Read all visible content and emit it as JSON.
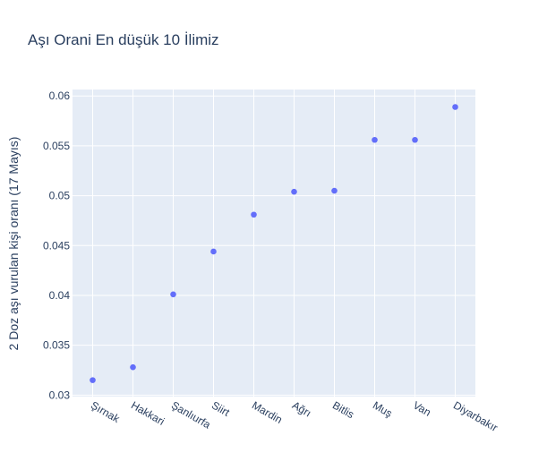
{
  "chart_data": {
    "type": "scatter",
    "title": "Aşı Orani En düşük 10 İlimiz",
    "xlabel": "",
    "ylabel": "2 Doz aşı vurulan kişi oranı (17 Mayıs)",
    "categories": [
      "Şırnak",
      "Hakkari",
      "Şanlıurfa",
      "Siirt",
      "Mardin",
      "Ağrı",
      "Bitlis",
      "Muş",
      "Van",
      "Diyarbakır"
    ],
    "series": [
      {
        "values": [
          0.0315,
          0.0328,
          0.0401,
          0.0444,
          0.0481,
          0.0504,
          0.0505,
          0.0556,
          0.0556,
          0.0589
        ]
      }
    ],
    "y_ticks": [
      "0.03",
      "0.035",
      "0.04",
      "0.045",
      "0.05",
      "0.055",
      "0.06"
    ],
    "ylim": [
      0.02985,
      0.06065
    ],
    "grid": true,
    "colors": {
      "marker": "#636efa",
      "plot_bg": "#e5ecf6",
      "grid": "#ffffff",
      "text": "#2a3f5f"
    }
  }
}
